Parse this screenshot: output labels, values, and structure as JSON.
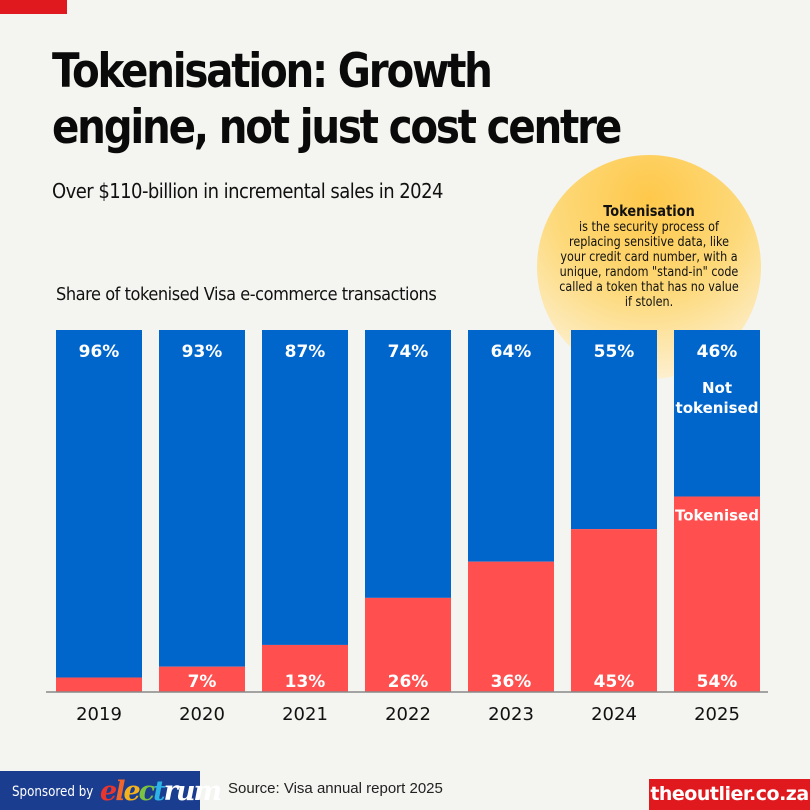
{
  "header": {
    "title_line1": "Tokenisation: Growth",
    "title_line2": "engine, not just cost centre",
    "subtitle": "Over $110-billion in incremental sales in 2024"
  },
  "definition": {
    "term": "Tokenisation",
    "body": "is the security process of replacing sensitive data, like your credit card number, with a unique, random \"stand-in\" code called a token that has no value if stolen."
  },
  "colors": {
    "not_tokenised": "#0066cc",
    "tokenised": "#ff4f4f",
    "accent_red": "#e0191e",
    "sponsor_blue": "#1a3d8f"
  },
  "chart_data": {
    "type": "bar",
    "stacked": true,
    "title": "Share of tokenised Visa e-commerce transactions",
    "categories": [
      "2019",
      "2020",
      "2021",
      "2022",
      "2023",
      "2024",
      "2025"
    ],
    "series": [
      {
        "name": "Tokenised",
        "values": [
          4,
          7,
          13,
          26,
          36,
          45,
          54
        ],
        "labels": [
          "",
          "7%",
          "13%",
          "26%",
          "36%",
          "45%",
          "54%"
        ]
      },
      {
        "name": "Not tokenised",
        "values": [
          96,
          93,
          87,
          74,
          64,
          55,
          46
        ],
        "labels": [
          "96%",
          "93%",
          "87%",
          "74%",
          "64%",
          "55%",
          "46%"
        ]
      }
    ],
    "ylim": [
      0,
      100
    ],
    "xlabel": "",
    "ylabel": "",
    "grid": false,
    "annotations": {
      "not_tokenised_line1": "Not",
      "not_tokenised_line2": "tokenised",
      "tokenised": "Tokenised"
    }
  },
  "footer": {
    "sponsored_by": "Sponsored by",
    "sponsor_name": "electrum",
    "source": "Source: Visa annual report 2025",
    "brand": "theoutlier.co.za"
  }
}
